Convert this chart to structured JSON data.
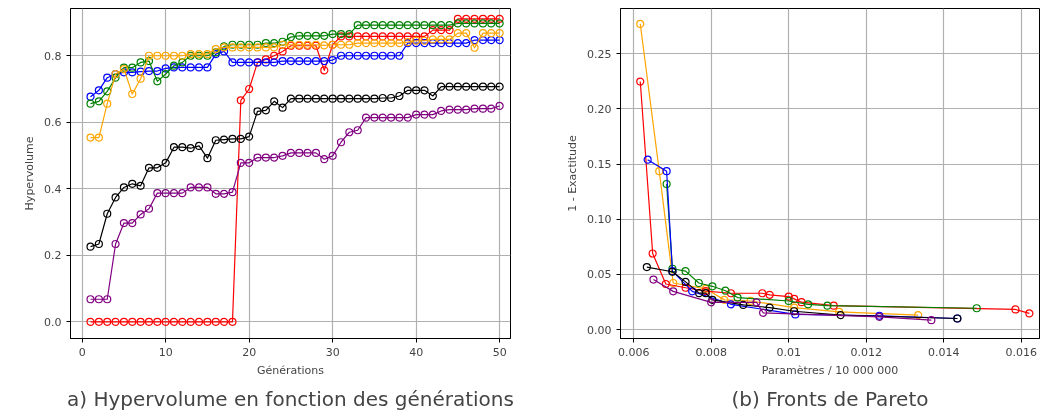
{
  "chart_data": [
    {
      "type": "line",
      "title": "a) Hypervolume en fonction des générations",
      "xlabel": "Générations",
      "ylabel": "Hypervolume",
      "x": [
        1,
        2,
        3,
        4,
        5,
        6,
        7,
        8,
        9,
        10,
        11,
        12,
        13,
        14,
        15,
        16,
        17,
        18,
        19,
        20,
        21,
        22,
        23,
        24,
        25,
        26,
        27,
        28,
        29,
        30,
        31,
        32,
        33,
        34,
        35,
        36,
        37,
        38,
        39,
        40,
        41,
        42,
        43,
        44,
        45,
        46,
        47,
        48,
        49,
        50
      ],
      "xlim": [
        -1.4,
        51.3
      ],
      "ylim": [
        -0.05,
        0.942
      ],
      "xticks": [
        0,
        10,
        20,
        30,
        40,
        50
      ],
      "yticks": [
        {
          "value": 0,
          "label": "0.0"
        },
        {
          "value": 0.2,
          "label": "0.2"
        },
        {
          "value": 0.4,
          "label": "0.4"
        },
        {
          "value": 0.6,
          "label": "0.6"
        },
        {
          "value": 0.8,
          "label": "0.8"
        }
      ],
      "grid": true,
      "marker": "circle",
      "line_style": "solid",
      "series": [
        {
          "color": "#ff0000",
          "values": [
            0,
            0,
            0,
            0,
            0,
            0,
            0,
            0,
            0,
            0,
            0,
            0,
            0,
            0,
            0,
            0,
            0,
            0,
            0.666,
            0.7,
            0.78,
            0.789,
            0.8,
            0.813,
            0.83,
            0.83,
            0.83,
            0.83,
            0.756,
            0.833,
            0.858,
            0.858,
            0.858,
            0.858,
            0.858,
            0.858,
            0.858,
            0.858,
            0.858,
            0.858,
            0.858,
            0.877,
            0.877,
            0.877,
            0.911,
            0.911,
            0.911,
            0.911,
            0.911,
            0.911
          ]
        },
        {
          "color": "#0000ff",
          "values": [
            0.677,
            0.696,
            0.734,
            0.745,
            0.75,
            0.75,
            0.752,
            0.754,
            0.754,
            0.762,
            0.765,
            0.765,
            0.765,
            0.765,
            0.765,
            0.805,
            0.813,
            0.78,
            0.78,
            0.78,
            0.78,
            0.78,
            0.78,
            0.784,
            0.784,
            0.784,
            0.784,
            0.784,
            0.784,
            0.787,
            0.8,
            0.8,
            0.8,
            0.8,
            0.8,
            0.8,
            0.8,
            0.8,
            0.838,
            0.838,
            0.838,
            0.838,
            0.838,
            0.838,
            0.838,
            0.838,
            0.847,
            0.847,
            0.847,
            0.847
          ]
        },
        {
          "color": "#008000",
          "values": [
            0.656,
            0.663,
            0.693,
            0.734,
            0.764,
            0.764,
            0.78,
            0.784,
            0.723,
            0.745,
            0.77,
            0.78,
            0.8,
            0.8,
            0.8,
            0.81,
            0.828,
            0.833,
            0.833,
            0.833,
            0.833,
            0.838,
            0.838,
            0.842,
            0.856,
            0.86,
            0.86,
            0.86,
            0.86,
            0.865,
            0.865,
            0.865,
            0.892,
            0.892,
            0.892,
            0.892,
            0.892,
            0.892,
            0.892,
            0.892,
            0.892,
            0.892,
            0.892,
            0.892,
            0.897,
            0.897,
            0.897,
            0.897,
            0.897,
            0.897
          ]
        },
        {
          "color": "#ffa500",
          "values": [
            0.554,
            0.554,
            0.656,
            0.745,
            0.76,
            0.685,
            0.731,
            0.8,
            0.8,
            0.8,
            0.8,
            0.8,
            0.805,
            0.805,
            0.805,
            0.82,
            0.825,
            0.825,
            0.825,
            0.825,
            0.825,
            0.825,
            0.825,
            0.833,
            0.833,
            0.833,
            0.833,
            0.833,
            0.831,
            0.833,
            0.833,
            0.833,
            0.838,
            0.838,
            0.838,
            0.838,
            0.838,
            0.838,
            0.841,
            0.845,
            0.845,
            0.849,
            0.849,
            0.849,
            0.868,
            0.868,
            0.824,
            0.868,
            0.868,
            0.868
          ]
        },
        {
          "color": "#000000",
          "values": [
            0.226,
            0.234,
            0.325,
            0.374,
            0.404,
            0.415,
            0.409,
            0.463,
            0.463,
            0.478,
            0.525,
            0.525,
            0.522,
            0.529,
            0.492,
            0.546,
            0.548,
            0.55,
            0.55,
            0.557,
            0.633,
            0.636,
            0.663,
            0.644,
            0.671,
            0.671,
            0.671,
            0.671,
            0.671,
            0.671,
            0.671,
            0.671,
            0.671,
            0.671,
            0.671,
            0.673,
            0.673,
            0.679,
            0.696,
            0.696,
            0.696,
            0.679,
            0.707,
            0.707,
            0.707,
            0.707,
            0.707,
            0.707,
            0.707,
            0.707
          ]
        },
        {
          "color": "#800080",
          "values": [
            0.068,
            0.068,
            0.068,
            0.234,
            0.297,
            0.297,
            0.323,
            0.34,
            0.387,
            0.387,
            0.387,
            0.387,
            0.404,
            0.404,
            0.404,
            0.385,
            0.385,
            0.39,
            0.478,
            0.478,
            0.494,
            0.494,
            0.494,
            0.499,
            0.508,
            0.508,
            0.508,
            0.508,
            0.489,
            0.499,
            0.54,
            0.57,
            0.576,
            0.614,
            0.614,
            0.614,
            0.614,
            0.614,
            0.614,
            0.623,
            0.623,
            0.623,
            0.634,
            0.638,
            0.638,
            0.638,
            0.641,
            0.641,
            0.641,
            0.649
          ]
        }
      ]
    },
    {
      "type": "line",
      "title": "(b) Fronts de Pareto",
      "xlabel": "Paramètres / 10 000 000",
      "ylabel": "1 - Exactitude",
      "xlim": [
        0.00566,
        0.01647
      ],
      "ylim": [
        -0.008,
        0.291
      ],
      "xticks": [
        0.006,
        0.008,
        0.01,
        0.012,
        0.014,
        0.016
      ],
      "yticks": [
        {
          "value": 0,
          "label": "0.00"
        },
        {
          "value": 0.05,
          "label": "0.05"
        },
        {
          "value": 0.1,
          "label": "0.10"
        },
        {
          "value": 0.15,
          "label": "0.15"
        },
        {
          "value": 0.2,
          "label": "0.20"
        },
        {
          "value": 0.25,
          "label": "0.25"
        }
      ],
      "grid": true,
      "marker": "circle",
      "line_style": "solid",
      "series": [
        {
          "color": "#ffa500",
          "x": [
            0.00617,
            0.00666,
            0.00702,
            0.00786,
            0.00834,
            0.00902,
            0.01014,
            0.0113,
            0.01334
          ],
          "values": [
            0.277,
            0.1436,
            0.0423,
            0.037,
            0.027,
            0.026,
            0.0199,
            0.0162,
            0.0132
          ]
        },
        {
          "color": "#ff0000",
          "x": [
            0.00617,
            0.00649,
            0.00683,
            0.00734,
            0.00786,
            0.00851,
            0.00932,
            0.00951,
            0.01,
            0.01014,
            0.01033,
            0.01116,
            0.01585,
            0.01621
          ],
          "values": [
            0.2248,
            0.069,
            0.0414,
            0.038,
            0.035,
            0.033,
            0.033,
            0.0316,
            0.03,
            0.0279,
            0.0249,
            0.0217,
            0.0183,
            0.0147
          ]
        },
        {
          "color": "#008000",
          "x": [
            0.00685,
            0.007,
            0.00734,
            0.00768,
            0.00803,
            0.00837,
            0.00868,
            0.01,
            0.0105,
            0.011,
            0.01485
          ],
          "values": [
            0.132,
            0.0552,
            0.053,
            0.0423,
            0.0393,
            0.0353,
            0.0291,
            0.026,
            0.023,
            0.0217,
            0.0194
          ]
        },
        {
          "color": "#0000ff",
          "x": [
            0.00636,
            0.00685,
            0.007,
            0.00751,
            0.00851,
            0.01017,
            0.01234,
            0.01435
          ],
          "values": [
            0.154,
            0.1436,
            0.053,
            0.0347,
            0.023,
            0.0138,
            0.0126,
            0.0101
          ]
        },
        {
          "color": "#000000",
          "x": [
            0.00634,
            0.007,
            0.00734,
            0.00769,
            0.00786,
            0.00803,
            0.00883,
            0.00951,
            0.01014,
            0.01134,
            0.01435
          ],
          "values": [
            0.0567,
            0.0525,
            0.0433,
            0.0331,
            0.0331,
            0.027,
            0.0224,
            0.02,
            0.0167,
            0.0132,
            0.0101
          ]
        },
        {
          "color": "#800080",
          "x": [
            0.00651,
            0.00702,
            0.008,
            0.00917,
            0.00934,
            0.01234,
            0.01368
          ],
          "values": [
            0.0454,
            0.0347,
            0.0248,
            0.0248,
            0.0153,
            0.0116,
            0.0086
          ]
        }
      ]
    }
  ]
}
